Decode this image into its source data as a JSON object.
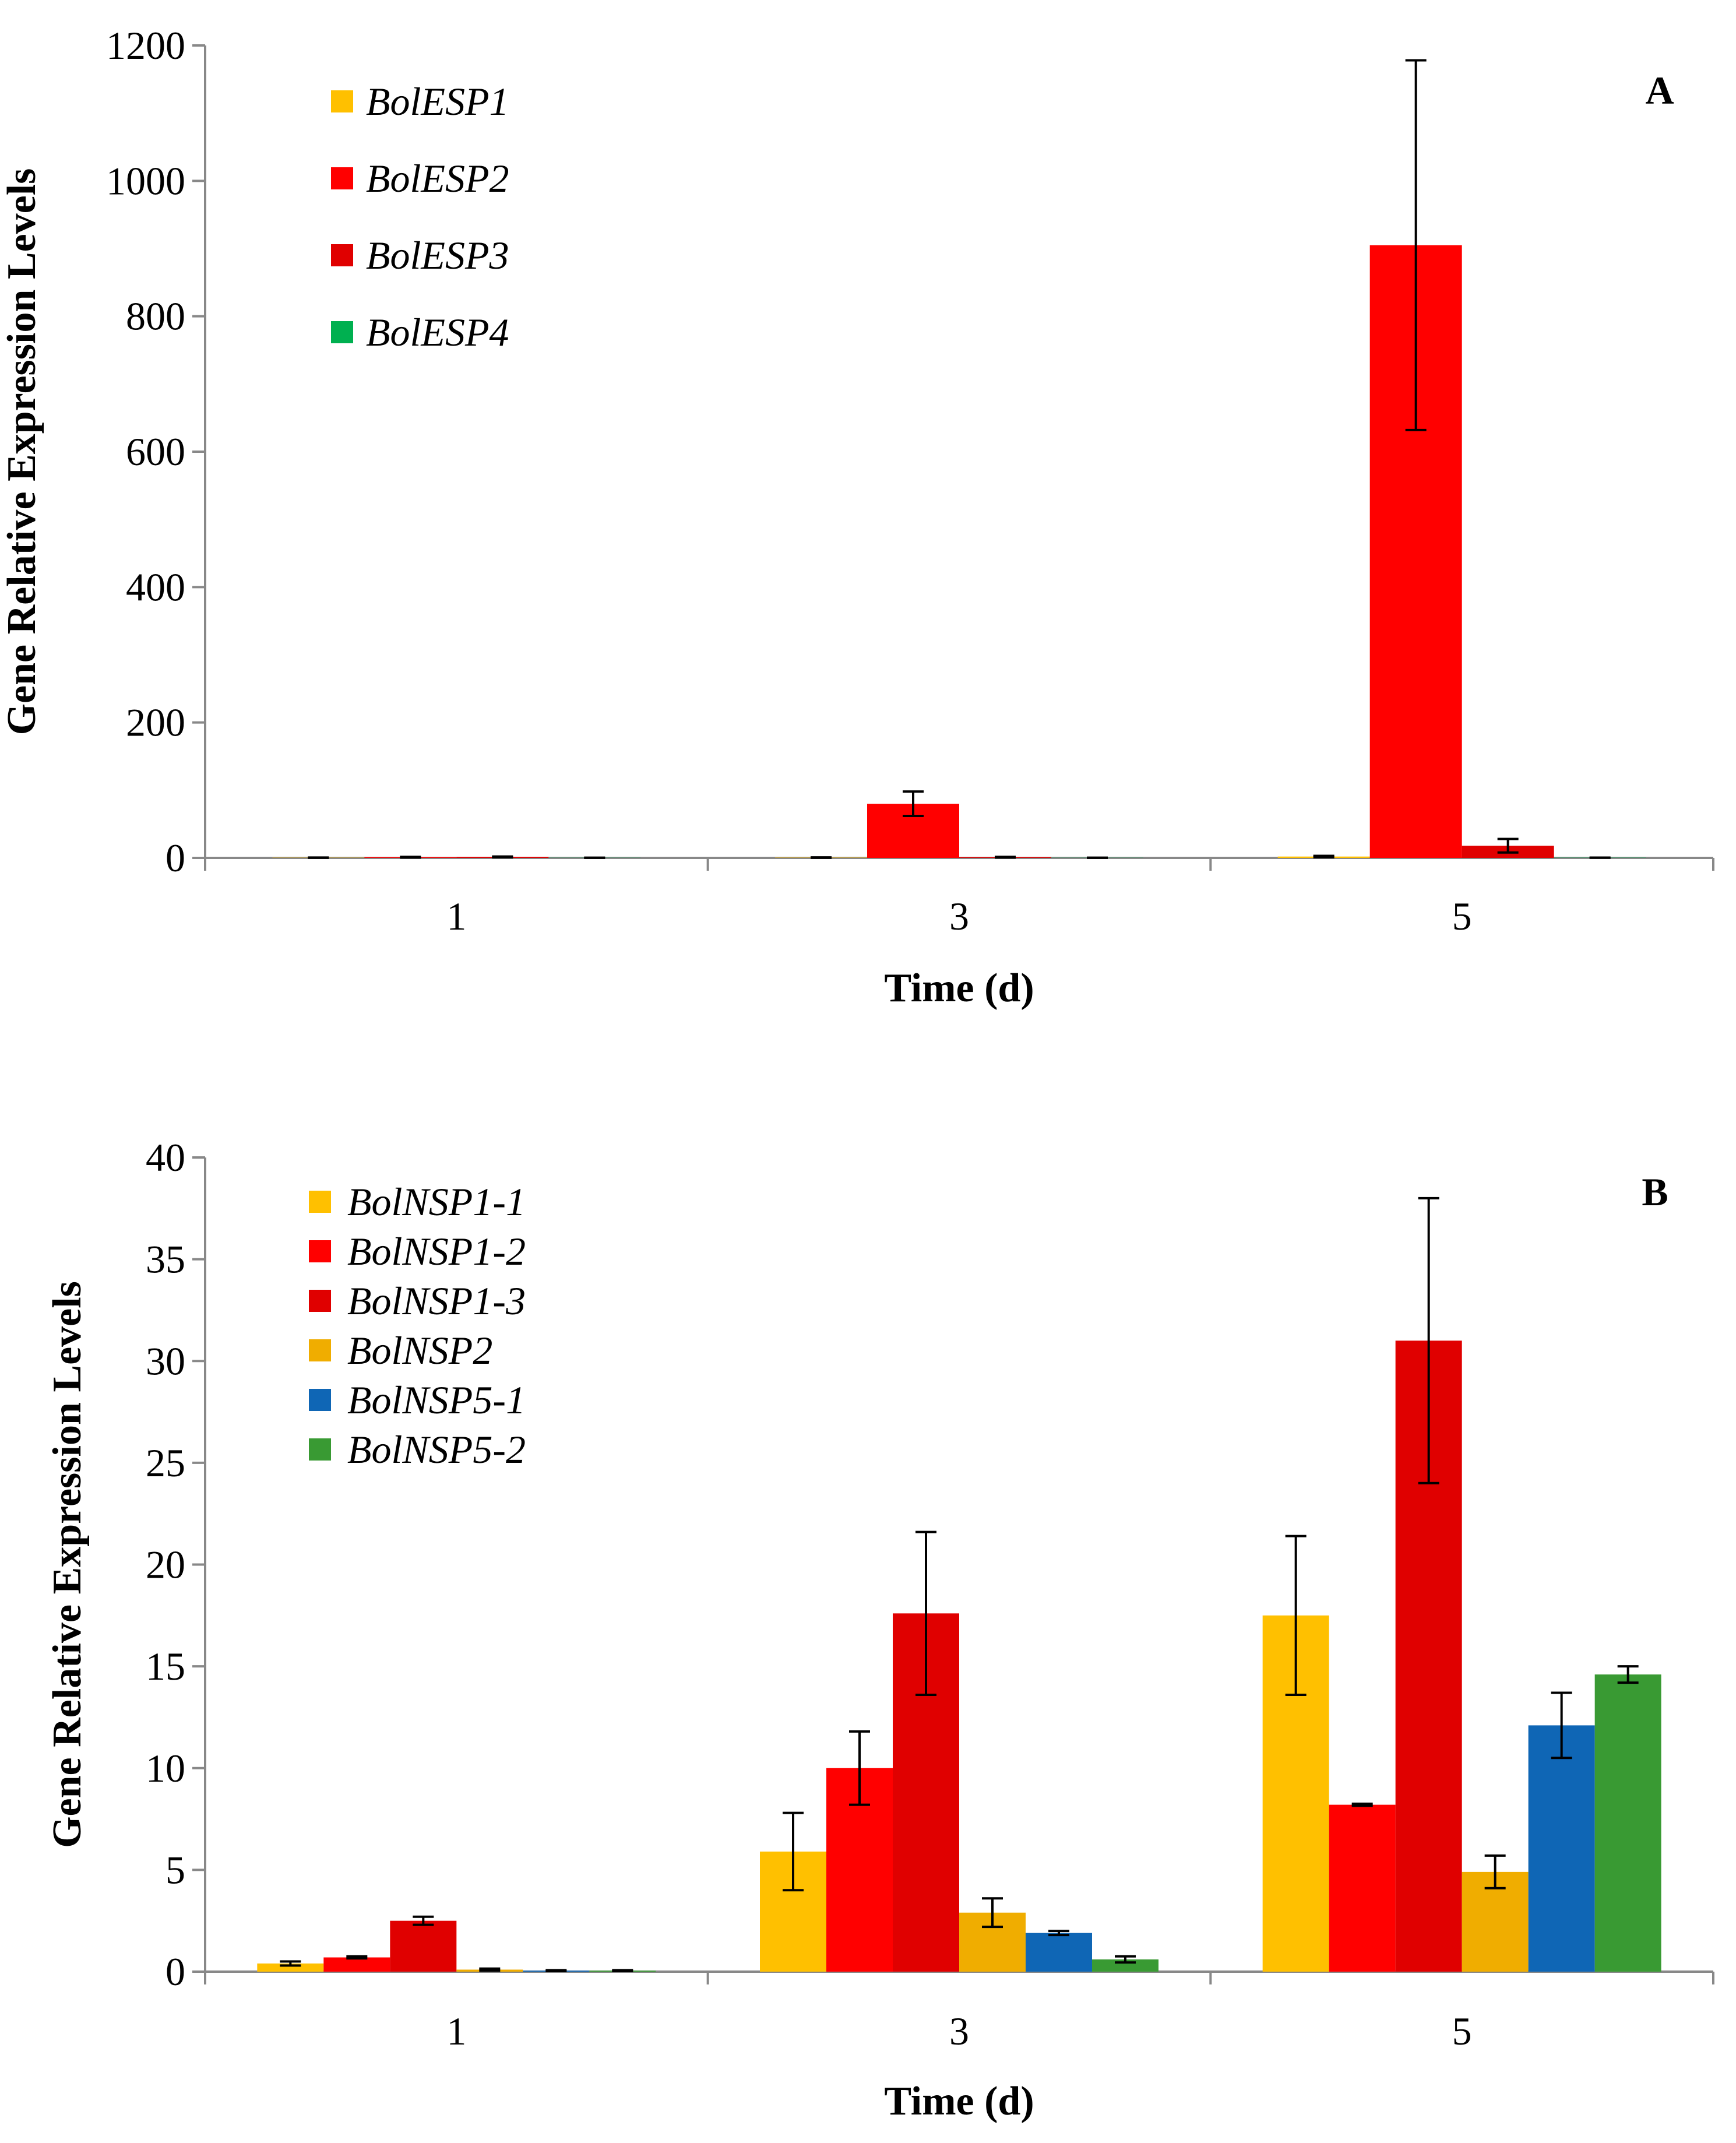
{
  "chart_data": [
    {
      "type": "bar",
      "panel": "A",
      "xlabel": "Time (d)",
      "ylabel": "Gene Relative Expression Levels",
      "categories": [
        "1",
        "3",
        "5"
      ],
      "ylim": [
        0,
        1200
      ],
      "yticks": [
        "0",
        "200",
        "400",
        "600",
        "800",
        "1000",
        "1200"
      ],
      "legend_position": "top-left",
      "series": [
        {
          "name": "BolESP1",
          "color": "#FFC000",
          "values": [
            0.3,
            0.4,
            2
          ],
          "errors": [
            0.2,
            0.3,
            1
          ]
        },
        {
          "name": "BolESP2",
          "color": "#FF0000",
          "values": [
            1,
            80,
            905
          ],
          "errors": [
            0.5,
            18,
            273
          ]
        },
        {
          "name": "BolESP3",
          "color": "#E00000",
          "values": [
            1.5,
            1,
            18
          ],
          "errors": [
            0.5,
            0.5,
            10
          ]
        },
        {
          "name": "BolESP4",
          "color": "#00B050",
          "values": [
            0.2,
            0.2,
            0.3
          ],
          "errors": [
            0.1,
            0.1,
            0.1
          ]
        }
      ]
    },
    {
      "type": "bar",
      "panel": "B",
      "xlabel": "Time (d)",
      "ylabel": "Gene Relative Expression Levels",
      "categories": [
        "1",
        "3",
        "5"
      ],
      "ylim": [
        0,
        40
      ],
      "yticks": [
        "0",
        "5",
        "10",
        "15",
        "20",
        "25",
        "30",
        "35",
        "40"
      ],
      "legend_position": "top-left",
      "series": [
        {
          "name": "BolNSP1-1",
          "color": "#FFC000",
          "values": [
            0.4,
            5.9,
            17.5
          ],
          "errors": [
            0.1,
            1.9,
            3.9
          ]
        },
        {
          "name": "BolNSP1-2",
          "color": "#FF0000",
          "values": [
            0.7,
            10.0,
            8.2
          ],
          "errors": [
            0.05,
            1.8,
            0.05
          ]
        },
        {
          "name": "BolNSP1-3",
          "color": "#E00000",
          "values": [
            2.5,
            17.6,
            31.0
          ],
          "errors": [
            0.2,
            4.0,
            7.0
          ]
        },
        {
          "name": "BolNSP2",
          "color": "#F0AD00",
          "values": [
            0.1,
            2.9,
            4.9
          ],
          "errors": [
            0.05,
            0.7,
            0.8
          ]
        },
        {
          "name": "BolNSP5-1",
          "color": "#0F66B5",
          "values": [
            0.05,
            1.9,
            12.1
          ],
          "errors": [
            0.02,
            0.1,
            1.6
          ]
        },
        {
          "name": "BolNSP5-2",
          "color": "#399A33",
          "values": [
            0.05,
            0.6,
            14.6
          ],
          "errors": [
            0.02,
            0.15,
            0.4
          ]
        }
      ]
    }
  ]
}
